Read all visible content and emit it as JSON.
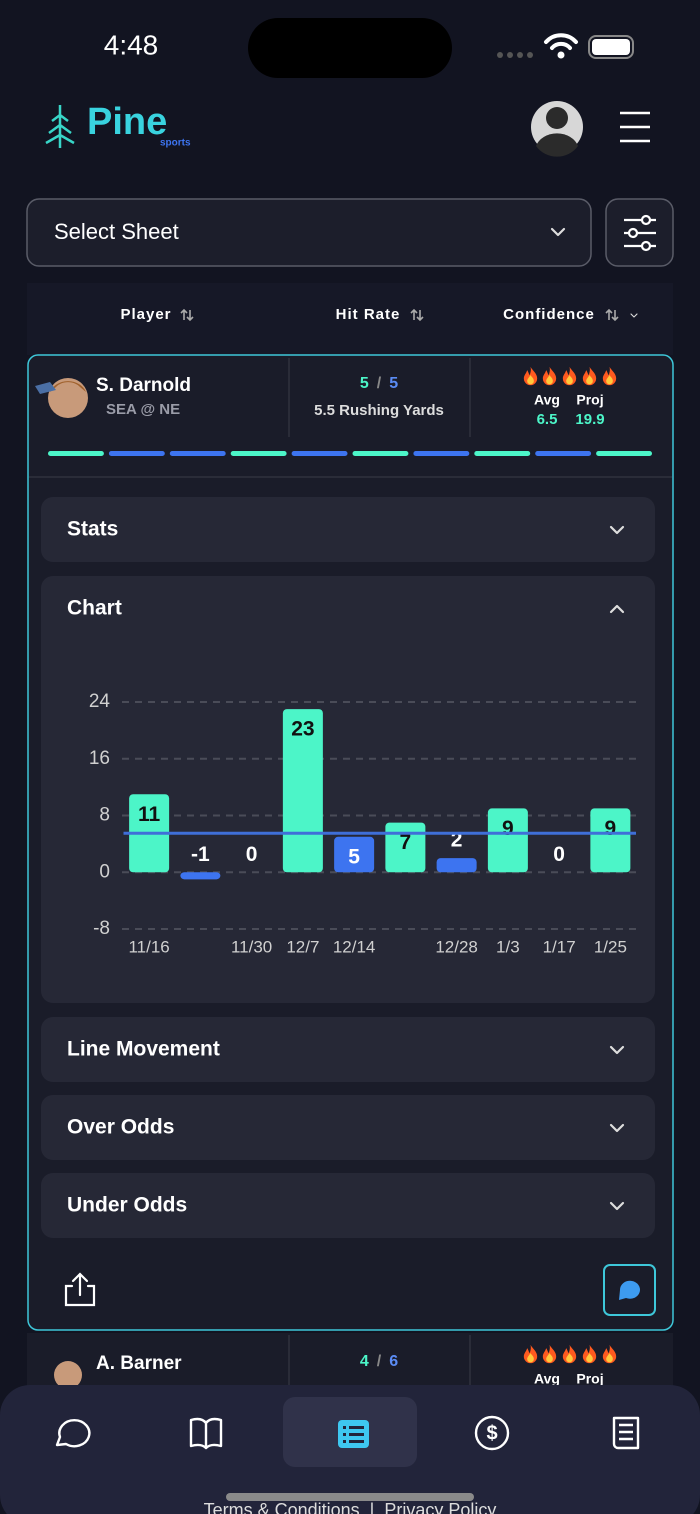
{
  "status_bar": {
    "time": "4:48"
  },
  "header": {
    "logo": "Pine",
    "logo_sub": "sports"
  },
  "select": {
    "label": "Select Sheet"
  },
  "table_header": {
    "player": "Player",
    "hit_rate": "Hit Rate",
    "confidence": "Confidence"
  },
  "cards": [
    {
      "name": "S. Darnold",
      "matchup": "SEA @ NE",
      "hits": "5",
      "separator": "/",
      "total": "5",
      "prop": "5.5 Rushing Yards",
      "avg_label": "Avg",
      "avg": "6.5",
      "proj_label": "Proj",
      "proj": "19.9",
      "segments": [
        "#4cf5c8",
        "#3d74f0",
        "#3d74f0",
        "#4cf5c8",
        "#3d74f0",
        "#4cf5c8",
        "#3d74f0",
        "#4cf5c8",
        "#3d74f0",
        "#4cf5c8"
      ]
    },
    {
      "name": "A. Barner",
      "hits": "4",
      "separator": "/",
      "total": "6",
      "avg_label": "Avg",
      "proj_label": "Proj"
    }
  ],
  "sections": [
    "Stats",
    "Chart",
    "Line Movement",
    "Over Odds",
    "Under Odds"
  ],
  "chart_data": {
    "type": "bar",
    "categories": [
      "11/16",
      null,
      "11/30",
      "12/7",
      "12/14",
      null,
      "12/28",
      "1/3",
      "1/17",
      "1/25"
    ],
    "values": [
      11,
      -1,
      0,
      23,
      5,
      7,
      2,
      9,
      0,
      9
    ],
    "colors": [
      "#4cf5c8",
      "#3d74f0",
      "#4cf5c8",
      "#4cf5c8",
      "#3d74f0",
      "#4cf5c8",
      "#3d74f0",
      "#4cf5c8",
      "#4cf5c8",
      "#4cf5c8"
    ],
    "line": 5.5,
    "line_color": "#3f6fd8",
    "ylim": [
      -8,
      24
    ],
    "yticks": [
      -8,
      0,
      8,
      16,
      24
    ],
    "grid": true
  },
  "footer": {
    "terms": "Terms & Conditions",
    "divider": "|",
    "privacy": "Privacy Policy"
  }
}
